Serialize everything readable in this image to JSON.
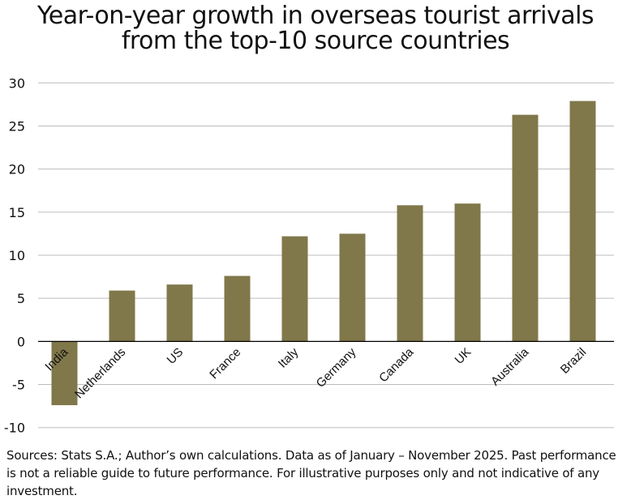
{
  "chart_data": {
    "type": "bar",
    "title": "Year-on-year growth in overseas tourist arrivals from the top-10 source countries",
    "categories": [
      "India",
      "Netherlands",
      "US",
      "France",
      "Italy",
      "Germany",
      "Canada",
      "UK",
      "Australia",
      "Brazil"
    ],
    "values": [
      -7.4,
      5.9,
      6.6,
      7.6,
      12.2,
      12.5,
      15.8,
      16.0,
      26.3,
      27.9
    ],
    "ylim": [
      -10,
      30
    ],
    "yticks": [
      -10,
      -5,
      0,
      5,
      10,
      15,
      20,
      25,
      30
    ],
    "xlabel": "",
    "ylabel": "",
    "grid": true,
    "bar_color": "#80784a"
  },
  "title_lines": [
    "Year-on-year growth in overseas tourist arrivals",
    "from the top-10 source countries"
  ],
  "source_note": "Sources: Stats S.A.; Author’s own calculations. Data as of January – November 2025. Past performance is not a reliable guide to future performance. For illustrative purposes only and not indicative of any investment."
}
